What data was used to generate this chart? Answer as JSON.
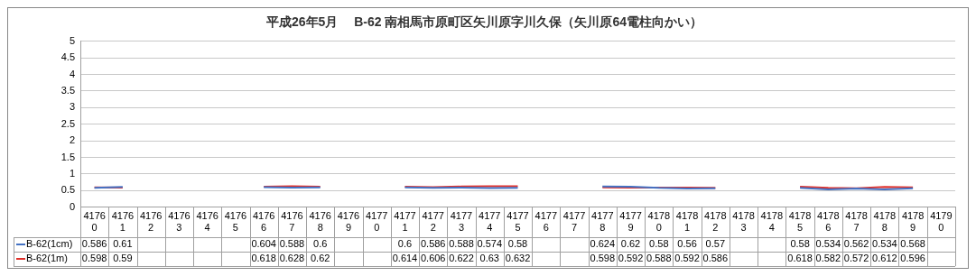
{
  "chart_data": {
    "type": "line",
    "title": "平成26年5月　 B-62 南相馬市原町区矢川原字川久保（矢川原64電柱向かい）",
    "categories": [
      "41760",
      "41761",
      "41762",
      "41763",
      "41764",
      "41765",
      "41766",
      "41767",
      "41768",
      "41769",
      "41770",
      "41771",
      "41772",
      "41773",
      "41774",
      "41775",
      "41776",
      "41777",
      "41778",
      "41779",
      "41780",
      "41781",
      "41782",
      "41783",
      "41784",
      "41785",
      "41786",
      "41787",
      "41788",
      "41789",
      "41790"
    ],
    "series": [
      {
        "name": "B-62(1cm)",
        "color": "#4472c4",
        "values": [
          0.586,
          0.61,
          null,
          null,
          null,
          null,
          0.604,
          0.588,
          0.6,
          null,
          null,
          0.6,
          0.586,
          0.588,
          0.574,
          0.58,
          null,
          null,
          0.624,
          0.62,
          0.58,
          0.56,
          0.57,
          null,
          null,
          0.58,
          0.534,
          0.562,
          0.534,
          0.568,
          null
        ]
      },
      {
        "name": "B-62(1m)",
        "color": "#e0302a",
        "values": [
          0.598,
          0.59,
          null,
          null,
          null,
          null,
          0.618,
          0.628,
          0.62,
          null,
          null,
          0.614,
          0.606,
          0.622,
          0.63,
          0.632,
          null,
          null,
          0.598,
          0.592,
          0.588,
          0.592,
          0.586,
          null,
          null,
          0.618,
          0.582,
          0.572,
          0.612,
          0.596,
          null
        ]
      }
    ],
    "ylim": [
      0,
      5
    ],
    "yticks": [
      0,
      0.5,
      1,
      1.5,
      2,
      2.5,
      3,
      3.5,
      4,
      4.5,
      5
    ],
    "grid": "y",
    "legend": "bottom",
    "data_labels": true,
    "marker": "none",
    "line_style": "solid"
  }
}
